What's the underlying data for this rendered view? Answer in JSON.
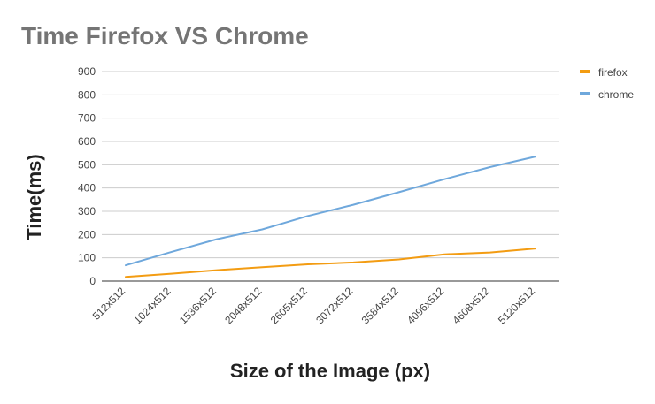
{
  "chart_data": {
    "type": "line",
    "title": "Time Firefox VS Chrome",
    "xlabel": "Size of the Image (px)",
    "ylabel": "Time(ms)",
    "categories": [
      "512x512",
      "1024x512",
      "1536x512",
      "2048x512",
      "2605x512",
      "3072x512",
      "3584x512",
      "4096x512",
      "4608x512",
      "5120x512"
    ],
    "ylim": [
      0,
      900
    ],
    "yticks": [
      0,
      100,
      200,
      300,
      400,
      500,
      600,
      700,
      800,
      900
    ],
    "grid": true,
    "legend_position": "top-right",
    "series": [
      {
        "name": "firefox",
        "color": "#f39c12",
        "values": [
          18,
          32,
          47,
          60,
          72,
          80,
          93,
          115,
          123,
          140
        ]
      },
      {
        "name": "chrome",
        "color": "#6fa8dc",
        "values": [
          68,
          125,
          180,
          222,
          280,
          328,
          382,
          438,
          490,
          535
        ]
      }
    ]
  }
}
